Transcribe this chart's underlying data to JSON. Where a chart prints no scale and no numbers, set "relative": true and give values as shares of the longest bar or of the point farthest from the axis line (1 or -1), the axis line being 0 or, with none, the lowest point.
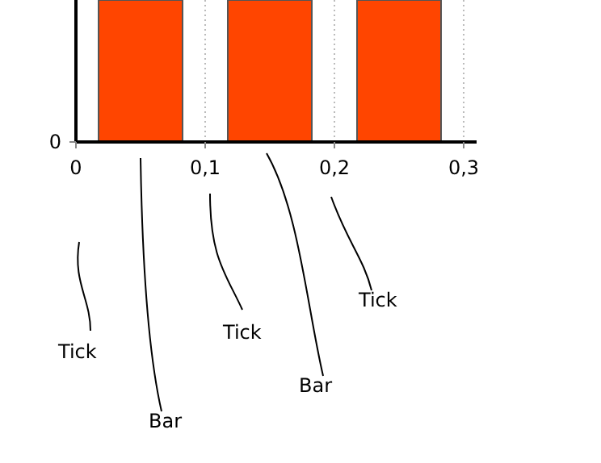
{
  "chart_data": {
    "type": "bar",
    "x": [
      0.05,
      0.15,
      0.25
    ],
    "values": [
      1,
      1,
      1
    ],
    "relative": true,
    "color": "#ff4500",
    "xlim": [
      0,
      0.31
    ],
    "xticks": [
      {
        "value": 0,
        "label": "0"
      },
      {
        "value": 0.1,
        "label": "0,1"
      },
      {
        "value": 0.2,
        "label": "0,2"
      },
      {
        "value": 0.3,
        "label": "0,3"
      }
    ],
    "grid": "x",
    "annotations": [
      "Tick",
      "Bar",
      "Tick",
      "Bar",
      "Tick",
      "0"
    ]
  }
}
